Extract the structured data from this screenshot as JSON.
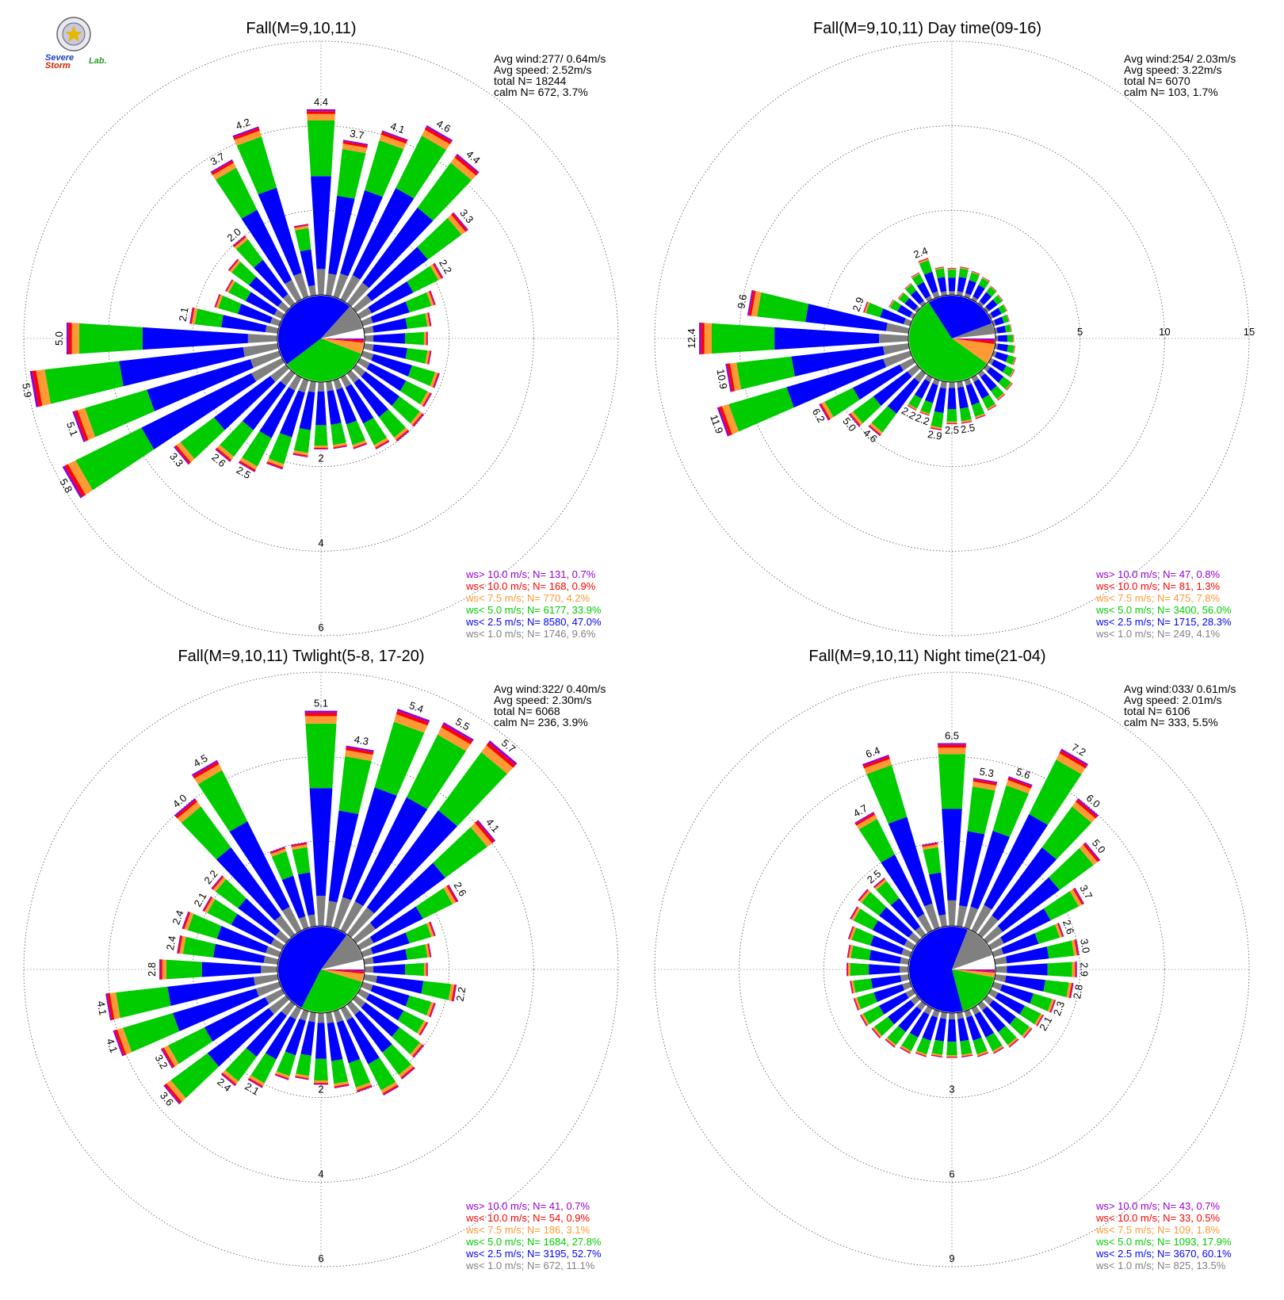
{
  "logo": {
    "line1": "Severe",
    "line2": "Storm",
    "line3": "Lab."
  },
  "colors": {
    "gt10": "#9400d3",
    "lt10": "#ff0000",
    "lt75": "#ff9933",
    "lt50": "#00cc00",
    "lt25": "#0000ff",
    "lt10ms": "#808080",
    "grid": "#555555"
  },
  "chart_data": [
    {
      "type": "polar-stacked-bar (wind rose)",
      "title": "Fall(M=9,10,11)",
      "stats": [
        "Avg wind:277/ 0.64m/s",
        "Avg speed: 2.52m/s",
        "total N=      18244",
        "calm N=    672,   3.7%"
      ],
      "rings": [
        2,
        4,
        6
      ],
      "ring_labels": [
        "2",
        "4",
        "6"
      ],
      "axis_labels_position": "south",
      "directions_deg": [
        0,
        10,
        20,
        30,
        40,
        50,
        60,
        70,
        80,
        90,
        100,
        110,
        120,
        130,
        140,
        150,
        160,
        170,
        180,
        190,
        200,
        210,
        220,
        230,
        240,
        250,
        260,
        270,
        280,
        290,
        300,
        310,
        320,
        330,
        340,
        350
      ],
      "totals": [
        4.4,
        3.7,
        4.1,
        4.6,
        4.4,
        3.3,
        2.2,
        1.8,
        1.6,
        1.5,
        1.6,
        1.9,
        1.9,
        2.0,
        2.0,
        1.9,
        1.7,
        1.6,
        1.6,
        1.8,
        2.2,
        2.5,
        2.6,
        3.3,
        5.8,
        5.1,
        5.9,
        5.0,
        2.1,
        1.6,
        1.5,
        1.7,
        2.0,
        3.7,
        4.2,
        1.7
      ],
      "labels": [
        "4.4",
        "3.7",
        "4.1",
        "4.6",
        "4.4",
        "3.3",
        "2.2",
        "",
        "",
        "",
        "",
        "",
        "",
        "",
        "",
        "",
        "",
        "",
        "",
        "",
        "",
        "2.5",
        "2.6",
        "3.3",
        "5.8",
        "5.1",
        "5.9",
        "5.0",
        "2.1",
        "",
        "",
        "",
        "2.0",
        "3.7",
        "4.2",
        ""
      ],
      "sectors": [
        {
          "name": "ws> 10.0 m/s",
          "N": 131,
          "pct": "0.7%"
        },
        {
          "name": "ws< 10.0 m/s",
          "N": 168,
          "pct": "0.9%"
        },
        {
          "name": "ws<  7.5 m/s",
          "N": 770,
          "pct": "4.2%"
        },
        {
          "name": "ws<  5.0 m/s",
          "N": 6177,
          "pct": "33.9%"
        },
        {
          "name": "ws<  2.5 m/s",
          "N": 8580,
          "pct": "47.0%"
        },
        {
          "name": "ws<  1.0 m/s",
          "N": 1746,
          "pct": "9.6%"
        }
      ],
      "legend": [
        "ws> 10.0 m/s; N=    131,  0.7%",
        "ws< 10.0 m/s; N=    168,  0.9%",
        "ws<  7.5 m/s; N=    770,  4.2%",
        "ws<  5.0 m/s; N=  6177, 33.9%",
        "ws<  2.5 m/s; N=  8580, 47.0%",
        "ws<  1.0 m/s; N=  1746,  9.6%"
      ]
    },
    {
      "type": "polar-stacked-bar (wind rose)",
      "title": "Fall(M=9,10,11) Day time(09-16)",
      "stats": [
        "Avg wind:254/ 2.03m/s",
        "Avg speed: 3.22m/s",
        "total N=        6070",
        "calm N=    103,   1.7%"
      ],
      "rings": [
        5,
        10,
        15
      ],
      "ring_labels": [
        "5",
        "10",
        "15"
      ],
      "axis_labels_position": "east",
      "directions_deg": [
        0,
        10,
        20,
        30,
        40,
        50,
        60,
        70,
        80,
        90,
        100,
        110,
        120,
        130,
        140,
        150,
        160,
        170,
        180,
        190,
        200,
        210,
        220,
        230,
        240,
        250,
        260,
        270,
        280,
        290,
        300,
        310,
        320,
        330,
        340,
        350
      ],
      "totals": [
        1.6,
        1.7,
        1.6,
        1.5,
        1.3,
        1.2,
        1.1,
        1.0,
        1.0,
        1.1,
        1.2,
        1.4,
        1.6,
        1.9,
        2.0,
        2.2,
        2.4,
        2.5,
        2.5,
        2.9,
        2.2,
        2.2,
        4.6,
        5.0,
        6.2,
        11.9,
        10.9,
        12.4,
        9.6,
        2.9,
        1.6,
        1.4,
        1.5,
        1.8,
        2.4,
        1.7
      ],
      "labels": [
        "",
        "",
        "",
        "",
        "",
        "",
        "",
        "",
        "",
        "",
        "",
        "",
        "",
        "",
        "",
        "",
        "",
        "2.5",
        "2.5",
        "2.9",
        "2.2",
        "2.2",
        "4.6",
        "5.0",
        "6.2",
        "11.9",
        "10.9",
        "12.4",
        "9.6",
        "2.9",
        "",
        "",
        "",
        "",
        "2.4",
        ""
      ],
      "sectors": [
        {
          "name": "ws> 10.0 m/s",
          "N": 47,
          "pct": "0.8%"
        },
        {
          "name": "ws< 10.0 m/s",
          "N": 81,
          "pct": "1.3%"
        },
        {
          "name": "ws<  7.5 m/s",
          "N": 475,
          "pct": "7.8%"
        },
        {
          "name": "ws<  5.0 m/s",
          "N": 3400,
          "pct": "56.0%"
        },
        {
          "name": "ws<  2.5 m/s",
          "N": 1715,
          "pct": "28.3%"
        },
        {
          "name": "ws<  1.0 m/s",
          "N": 249,
          "pct": "4.1%"
        }
      ],
      "legend": [
        "ws> 10.0 m/s; N=     47,  0.8%",
        "ws< 10.0 m/s; N=     81,  1.3%",
        "ws<  7.5 m/s; N=    475,  7.8%",
        "ws<  5.0 m/s; N=  3400, 56.0%",
        "ws<  2.5 m/s; N=  1715, 28.3%",
        "ws<  1.0 m/s; N=    249,  4.1%"
      ]
    },
    {
      "type": "polar-stacked-bar (wind rose)",
      "title": "Fall(M=9,10,11) Twlight(5-8, 17-20)",
      "stats": [
        "Avg wind:322/ 0.40m/s",
        "Avg speed: 2.30m/s",
        "total N=        6068",
        "calm N=    236,   3.9%"
      ],
      "rings": [
        2,
        4,
        6
      ],
      "ring_labels": [
        "2",
        "4",
        "6"
      ],
      "axis_labels_position": "south",
      "directions_deg": [
        0,
        10,
        20,
        30,
        40,
        50,
        60,
        70,
        80,
        90,
        100,
        110,
        120,
        130,
        140,
        150,
        160,
        170,
        180,
        190,
        200,
        210,
        220,
        230,
        240,
        250,
        260,
        270,
        280,
        290,
        300,
        310,
        320,
        330,
        340,
        350
      ],
      "totals": [
        5.1,
        4.3,
        5.4,
        5.5,
        5.7,
        4.1,
        2.6,
        1.8,
        1.6,
        1.5,
        2.2,
        1.8,
        1.8,
        2.0,
        2.2,
        2.3,
        2.0,
        1.8,
        1.7,
        1.6,
        1.7,
        2.1,
        2.4,
        3.6,
        3.2,
        4.1,
        4.1,
        2.8,
        2.4,
        2.4,
        2.1,
        2.2,
        4.0,
        4.5,
        2.0,
        2.0
      ],
      "labels": [
        "5.1",
        "4.3",
        "5.4",
        "5.5",
        "5.7",
        "4.1",
        "2.6",
        "",
        "",
        "",
        "2.2",
        "",
        "",
        "",
        "",
        "",
        "",
        "",
        "",
        "",
        "",
        "2.1",
        "2.4",
        "3.6",
        "3.2",
        "4.1",
        "4.1",
        "2.8",
        "2.4",
        "2.4",
        "2.1",
        "2.2",
        "4.0",
        "4.5",
        "",
        ""
      ],
      "sectors": [
        {
          "name": "ws> 10.0 m/s",
          "N": 41,
          "pct": "0.7%"
        },
        {
          "name": "ws< 10.0 m/s",
          "N": 54,
          "pct": "0.9%"
        },
        {
          "name": "ws<  7.5 m/s",
          "N": 186,
          "pct": "3.1%"
        },
        {
          "name": "ws<  5.0 m/s",
          "N": 1684,
          "pct": "27.8%"
        },
        {
          "name": "ws<  2.5 m/s",
          "N": 3195,
          "pct": "52.7%"
        },
        {
          "name": "ws<  1.0 m/s",
          "N": 672,
          "pct": "11.1%"
        }
      ],
      "legend": [
        "ws> 10.0 m/s; N=     41,  0.7%",
        "ws< 10.0 m/s; N=     54,  0.9%",
        "ws<  7.5 m/s; N=    186,  3.1%",
        "ws<  5.0 m/s; N=  1684, 27.8%",
        "ws<  2.5 m/s; N=  3195, 52.7%",
        "ws<  1.0 m/s; N=    672, 11.1%"
      ]
    },
    {
      "type": "polar-stacked-bar (wind rose)",
      "title": "Fall(M=9,10,11) Night time(21-04)",
      "stats": [
        "Avg wind:033/ 0.61m/s",
        "Avg speed: 2.01m/s",
        "total N=        6106",
        "calm N=    333,   5.5%"
      ],
      "rings": [
        3,
        6,
        9
      ],
      "ring_labels": [
        "3",
        "6",
        "9"
      ],
      "axis_labels_position": "south",
      "directions_deg": [
        0,
        10,
        20,
        30,
        40,
        50,
        60,
        70,
        80,
        90,
        100,
        110,
        120,
        130,
        140,
        150,
        160,
        170,
        180,
        190,
        200,
        210,
        220,
        230,
        240,
        250,
        260,
        270,
        280,
        290,
        300,
        310,
        320,
        330,
        340,
        350
      ],
      "totals": [
        6.5,
        5.3,
        5.6,
        7.2,
        6.0,
        5.0,
        3.7,
        2.6,
        3.0,
        2.9,
        2.8,
        2.3,
        2.1,
        2.0,
        1.9,
        1.8,
        1.7,
        1.6,
        1.6,
        1.6,
        1.7,
        1.8,
        1.9,
        2.0,
        2.1,
        2.1,
        2.1,
        2.2,
        2.2,
        2.3,
        2.5,
        2.6,
        2.5,
        4.7,
        6.4,
        3.0
      ],
      "labels": [
        "6.5",
        "5.3",
        "5.6",
        "7.2",
        "6.0",
        "5.0",
        "3.7",
        "2.6",
        "3.0",
        "2.9",
        "2.8",
        "2.3",
        "2.1",
        "",
        "",
        "",
        "",
        "",
        "",
        "",
        "",
        "",
        "",
        "",
        "",
        "",
        "",
        "",
        "",
        "",
        "",
        "",
        "2.5",
        "4.7",
        "6.4",
        ""
      ],
      "sectors": [
        {
          "name": "ws> 10.0 m/s",
          "N": 43,
          "pct": "0.7%"
        },
        {
          "name": "ws< 10.0 m/s",
          "N": 33,
          "pct": "0.5%"
        },
        {
          "name": "ws<  7.5 m/s",
          "N": 109,
          "pct": "1.8%"
        },
        {
          "name": "ws<  5.0 m/s",
          "N": 1093,
          "pct": "17.9%"
        },
        {
          "name": "ws<  2.5 m/s",
          "N": 3670,
          "pct": "60.1%"
        },
        {
          "name": "ws<  1.0 m/s",
          "N": 825,
          "pct": "13.5%"
        }
      ],
      "legend": [
        "ws> 10.0 m/s; N=     43,  0.7%",
        "ws< 10.0 m/s; N=     33,  0.5%",
        "ws<  7.5 m/s; N=    109,  1.8%",
        "ws<  5.0 m/s; N=  1093, 17.9%",
        "ws<  2.5 m/s; N=  3670, 60.1%",
        "ws<  1.0 m/s; N=    825, 13.5%"
      ]
    }
  ]
}
